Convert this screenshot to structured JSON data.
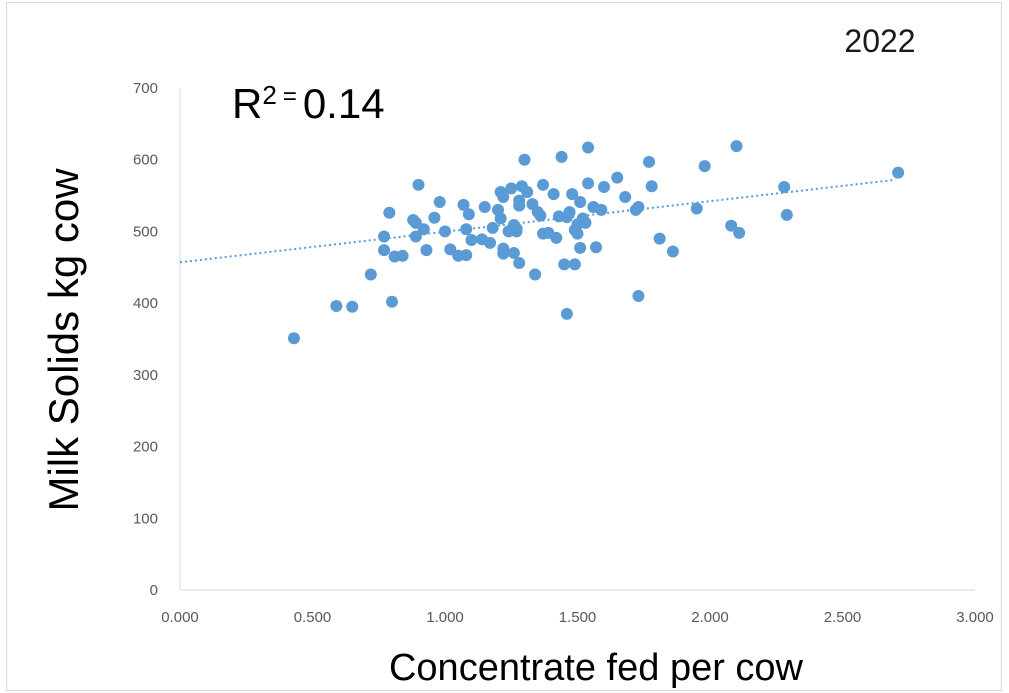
{
  "chart_data": {
    "type": "scatter",
    "title": "2022",
    "xlabel": "Concentrate fed per cow",
    "ylabel": "Milk Solids kg cow",
    "xlim": [
      0,
      3
    ],
    "ylim": [
      0,
      700
    ],
    "x_ticks": [
      "0.000",
      "0.500",
      "1.000",
      "1.500",
      "2.000",
      "2.500",
      "3.000"
    ],
    "y_ticks": [
      "0",
      "100",
      "200",
      "300",
      "400",
      "500",
      "600",
      "700"
    ],
    "grid": false,
    "trendline": {
      "type": "linear",
      "x": [
        0.0,
        2.7
      ],
      "y": [
        457,
        572
      ]
    },
    "annotation": {
      "base": "R",
      "sup": "2",
      "eq": "=",
      "value": "0.14"
    },
    "colors": {
      "points": "#5b9bd5",
      "trend": "#5b9bd5"
    },
    "points": [
      [
        0.43,
        351
      ],
      [
        0.59,
        396
      ],
      [
        0.65,
        395
      ],
      [
        0.72,
        440
      ],
      [
        0.77,
        493
      ],
      [
        0.77,
        474
      ],
      [
        0.79,
        526
      ],
      [
        0.8,
        402
      ],
      [
        0.81,
        465
      ],
      [
        0.84,
        466
      ],
      [
        0.88,
        516
      ],
      [
        0.89,
        512
      ],
      [
        0.89,
        493
      ],
      [
        0.9,
        565
      ],
      [
        0.92,
        503
      ],
      [
        0.93,
        474
      ],
      [
        0.96,
        519
      ],
      [
        0.98,
        541
      ],
      [
        1.0,
        500
      ],
      [
        1.02,
        475
      ],
      [
        1.05,
        466
      ],
      [
        1.07,
        537
      ],
      [
        1.08,
        503
      ],
      [
        1.08,
        467
      ],
      [
        1.09,
        524
      ],
      [
        1.1,
        488
      ],
      [
        1.14,
        489
      ],
      [
        1.15,
        534
      ],
      [
        1.17,
        484
      ],
      [
        1.18,
        505
      ],
      [
        1.2,
        530
      ],
      [
        1.21,
        555
      ],
      [
        1.21,
        518
      ],
      [
        1.22,
        548
      ],
      [
        1.22,
        476
      ],
      [
        1.22,
        469
      ],
      [
        1.24,
        500
      ],
      [
        1.25,
        560
      ],
      [
        1.26,
        509
      ],
      [
        1.26,
        470
      ],
      [
        1.27,
        504
      ],
      [
        1.27,
        500
      ],
      [
        1.28,
        536
      ],
      [
        1.28,
        456
      ],
      [
        1.28,
        543
      ],
      [
        1.29,
        563
      ],
      [
        1.3,
        600
      ],
      [
        1.31,
        555
      ],
      [
        1.33,
        538
      ],
      [
        1.34,
        440
      ],
      [
        1.35,
        527
      ],
      [
        1.36,
        522
      ],
      [
        1.37,
        565
      ],
      [
        1.37,
        497
      ],
      [
        1.39,
        498
      ],
      [
        1.41,
        552
      ],
      [
        1.42,
        491
      ],
      [
        1.43,
        521
      ],
      [
        1.44,
        604
      ],
      [
        1.45,
        454
      ],
      [
        1.46,
        520
      ],
      [
        1.46,
        385
      ],
      [
        1.47,
        527
      ],
      [
        1.48,
        552
      ],
      [
        1.49,
        502
      ],
      [
        1.49,
        454
      ],
      [
        1.5,
        510
      ],
      [
        1.5,
        497
      ],
      [
        1.51,
        477
      ],
      [
        1.51,
        541
      ],
      [
        1.52,
        518
      ],
      [
        1.53,
        512
      ],
      [
        1.54,
        617
      ],
      [
        1.54,
        567
      ],
      [
        1.56,
        534
      ],
      [
        1.57,
        478
      ],
      [
        1.59,
        530
      ],
      [
        1.6,
        562
      ],
      [
        1.65,
        575
      ],
      [
        1.68,
        548
      ],
      [
        1.72,
        530
      ],
      [
        1.73,
        534
      ],
      [
        1.73,
        410
      ],
      [
        1.77,
        597
      ],
      [
        1.78,
        563
      ],
      [
        1.81,
        490
      ],
      [
        1.86,
        472
      ],
      [
        1.95,
        532
      ],
      [
        1.98,
        591
      ],
      [
        2.08,
        508
      ],
      [
        2.1,
        619
      ],
      [
        2.11,
        498
      ],
      [
        2.28,
        562
      ],
      [
        2.29,
        523
      ],
      [
        2.71,
        582
      ]
    ]
  }
}
